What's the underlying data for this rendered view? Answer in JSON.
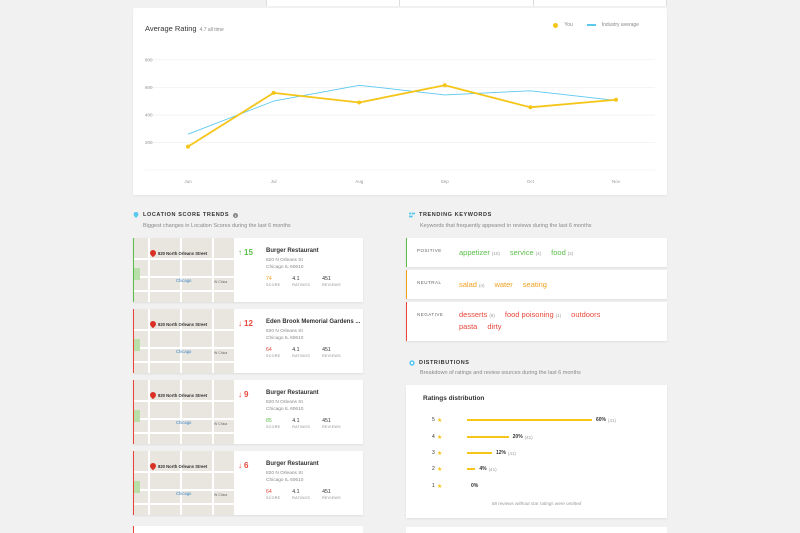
{
  "chart": {
    "title": "Average Rating",
    "subtitle": "4.7 all time",
    "legend": {
      "you": "You",
      "industry": "Industry average"
    },
    "colors": {
      "you": "#f5c518",
      "industry": "#5bc8ee"
    }
  },
  "chart_data": {
    "type": "line",
    "title": "Average Rating",
    "subtitle": "4.7 all time",
    "categories": [
      "Jun",
      "Jul",
      "Aug",
      "Sep",
      "Oct",
      "Nov"
    ],
    "y_ticks": [
      "200",
      "400",
      "600",
      "800"
    ],
    "ylim": [
      0,
      900
    ],
    "grid": true,
    "legend_position": "top-right",
    "series": [
      {
        "name": "You",
        "values": [
          170,
          560,
          490,
          615,
          455,
          510
        ]
      },
      {
        "name": "Industry average",
        "values": [
          260,
          500,
          615,
          545,
          575,
          505
        ]
      }
    ]
  },
  "location_trends": {
    "title": "LOCATION SCORE TRENDS",
    "subtitle": "Biggest changes in Location Scores during the last 6 months",
    "map_labels": {
      "street": "820 North Orleans Street",
      "station": "Chicago",
      "road": "W Chica"
    },
    "metric_labels": {
      "score": "SCORE",
      "ratings": "RATINGS",
      "reviews": "REVIEWS"
    },
    "items": [
      {
        "direction": "up",
        "change": "15",
        "name": "Burger Restaurant",
        "address1": "820 N Orleans St",
        "address2": "Chicago IL 60610",
        "score": "74",
        "rating": "4.1",
        "reviews": "451"
      },
      {
        "direction": "down",
        "change": "12",
        "name": "Eden Brook Memorial Gardens ...",
        "address1": "820 N Orleans St",
        "address2": "Chicago IL 60610",
        "score": "64",
        "rating": "4.1",
        "reviews": "451"
      },
      {
        "direction": "down",
        "change": "9",
        "name": "Burger Restaurant",
        "address1": "820 N Orleans St",
        "address2": "Chicago IL 60610",
        "score": "85",
        "rating": "4.1",
        "reviews": "451"
      },
      {
        "direction": "down",
        "change": "6",
        "name": "Burger Restaurant",
        "address1": "820 N Orleans St",
        "address2": "Chicago IL 60610",
        "score": "64",
        "rating": "4.1",
        "reviews": "451"
      }
    ]
  },
  "keywords": {
    "title": "TRENDING KEYWORDS",
    "subtitle": "Keywords that frequently appeared in reviews during the last 6 months",
    "positive": {
      "label": "POSITIVE",
      "items": [
        {
          "word": "appetizer",
          "count": "(10)"
        },
        {
          "word": "service",
          "count": "(4)"
        },
        {
          "word": "food",
          "count": "(2)"
        }
      ]
    },
    "neutral": {
      "label": "NEUTRAL",
      "items": [
        {
          "word": "salad",
          "count": "(4)"
        },
        {
          "word": "water",
          "count": ""
        },
        {
          "word": "seating",
          "count": ""
        }
      ]
    },
    "negative": {
      "label": "NEGATIVE",
      "items": [
        {
          "word": "desserts",
          "count": "(6)"
        },
        {
          "word": "food poisoning",
          "count": "(1)"
        },
        {
          "word": "outdoors",
          "count": ""
        },
        {
          "word": "pasta",
          "count": ""
        },
        {
          "word": "dirty",
          "count": ""
        }
      ]
    }
  },
  "distributions": {
    "title": "DISTRIBUTIONS",
    "subtitle": "Breakdown of ratings and review sources during the last 6 months",
    "card_title": "Ratings distribution",
    "rows": [
      {
        "stars": "5",
        "pct": "60%",
        "count": "(41)",
        "fraction": 0.6
      },
      {
        "stars": "4",
        "pct": "20%",
        "count": "(41)",
        "fraction": 0.2
      },
      {
        "stars": "3",
        "pct": "12%",
        "count": "(41)",
        "fraction": 0.12
      },
      {
        "stars": "2",
        "pct": "4%",
        "count": "(41)",
        "fraction": 0.04
      },
      {
        "stars": "1",
        "pct": "0%",
        "count": "",
        "fraction": 0
      }
    ],
    "note": "68 reviews without star ratings were omitted"
  }
}
